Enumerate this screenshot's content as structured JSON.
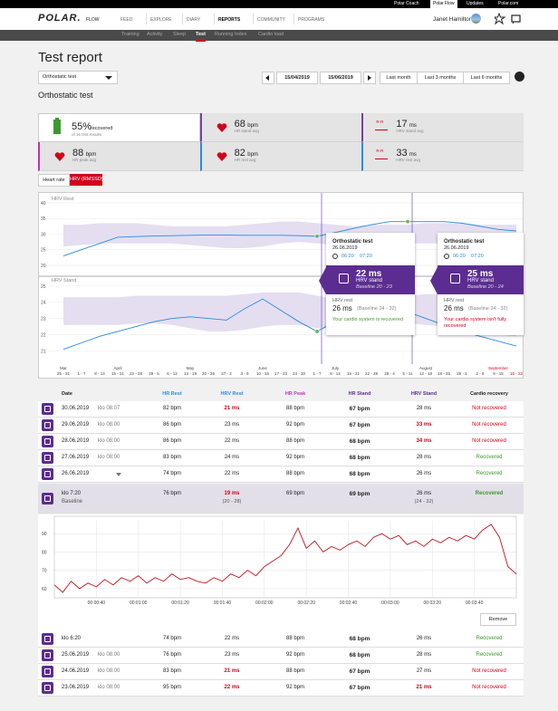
{
  "topbar": {
    "links": [
      "Polar Coach",
      "Polar Flow",
      "Updates",
      "Polar.com"
    ]
  },
  "nav": {
    "logo": "POLAR.",
    "product": "FLOW",
    "items": [
      "FEED",
      "EXPLORE",
      "DIARY",
      "REPORTS",
      "COMMUNITY",
      "PROGRAMS"
    ],
    "user": "Janet Hamilton"
  },
  "subnav": {
    "items": [
      "Training",
      "Activity",
      "Sleep",
      "Test",
      "Running Index",
      "Cardio load"
    ]
  },
  "header": {
    "title": "Test report",
    "select": "Orthostatic test",
    "date_from": "15/04/2019",
    "date_to": "15/06/2019",
    "ranges": [
      "Last month",
      "Last 3 months",
      "Last 6 months"
    ]
  },
  "section_title": "Orthostatic test",
  "summary": [
    {
      "value": "55%",
      "unit": "recovered",
      "label": "of 16 test results"
    },
    {
      "value": "68",
      "unit": "bpm",
      "label": "HR stand avg"
    },
    {
      "icon": "R-R",
      "value": "17",
      "unit": "ms",
      "label": "HRV stand avg"
    },
    {
      "value": "88",
      "unit": "bpm",
      "label": "HR peak avg"
    },
    {
      "value": "82",
      "unit": "bpm",
      "label": "HR rest avg"
    },
    {
      "icon": "R-R",
      "value": "33",
      "unit": "ms",
      "label": "HRV rest avg"
    }
  ],
  "tabs": [
    "Heart rate",
    "HRV (RMSSD)"
  ],
  "hrv_chart": {
    "weeks": [
      "25 - 31",
      "1 - 7",
      "8 - 14",
      "15 - 21",
      "22 - 28",
      "29 - 5",
      "6 - 12",
      "13 - 19",
      "20 - 26",
      "27 - 2",
      "3 - 9",
      "10 - 16",
      "17 - 23",
      "24 - 30",
      "1 - 7",
      "8 - 14",
      "15 - 21",
      "22 - 28",
      "29 - 4",
      "5 - 11",
      "12 - 18",
      "19 - 25",
      "26 - 1",
      "2 - 8",
      "9 - 15",
      "16 - 22"
    ],
    "months": [
      "Mar",
      null,
      null,
      "April",
      null,
      null,
      null,
      "May",
      null,
      null,
      null,
      "June",
      null,
      null,
      null,
      "July",
      null,
      null,
      null,
      null,
      "August",
      null,
      null,
      null,
      "September",
      null
    ],
    "red_month": 24,
    "red_week": 25,
    "selected": [
      14,
      19
    ],
    "panels": [
      {
        "title": "HRV Rest",
        "ylim": [
          16.5,
          42.6
        ],
        "yticks": [
          20,
          25,
          30,
          35,
          40
        ],
        "values": [
          23,
          25,
          27,
          29,
          29.2,
          29.4,
          29.5,
          29.6,
          29.7,
          29.7,
          29.6,
          29.6,
          29.6,
          29.5,
          29.3,
          30.5,
          31.8,
          33,
          34,
          34,
          34,
          34,
          33.5,
          32.5,
          31.5,
          31
        ],
        "band_low": [
          26,
          26.5,
          27,
          27,
          27,
          27,
          27,
          26.5,
          26,
          25.5,
          25.5,
          26,
          27,
          27.5,
          27,
          26.5,
          26,
          26.5,
          27,
          27,
          27,
          27,
          27,
          26.5,
          26,
          26
        ],
        "band_high": [
          33,
          33,
          33.5,
          33.5,
          33.5,
          33,
          32.5,
          32.5,
          32.5,
          32.5,
          33,
          33.5,
          34,
          34,
          33.5,
          33,
          32.5,
          33,
          33,
          33,
          33.5,
          33.5,
          33.5,
          33,
          33,
          33
        ]
      },
      {
        "title": "HRV Stand",
        "ylim": [
          20.3,
          25.6
        ],
        "yticks": [
          21,
          22,
          23,
          24,
          25
        ],
        "values": [
          21.1,
          21.5,
          21.9,
          22.2,
          22.5,
          22.8,
          23,
          23.1,
          23,
          22.9,
          23.6,
          24.2,
          23.5,
          22.8,
          22.2,
          22.8,
          23.1,
          23.2,
          23.3,
          23.4,
          23,
          22.6,
          22.2,
          21.9,
          21.6,
          21.3
        ],
        "band_low": [
          22.6,
          22.6,
          22.6,
          22.6,
          22.7,
          22.7,
          22.6,
          22.4,
          22.2,
          22.2,
          22.3,
          22.5,
          22.6,
          22.6,
          22.4,
          22.4,
          22.4,
          22.5,
          22.6,
          22.7,
          22.6,
          22.5,
          22.4,
          22.2,
          22,
          21.9
        ],
        "band_high": [
          24.3,
          24.3,
          24.3,
          24.3,
          24.4,
          24.4,
          24.4,
          24.4,
          24.4,
          24.4,
          24.5,
          24.6,
          24.6,
          24.6,
          24.4,
          24.2,
          24.1,
          24.2,
          24.3,
          24.4,
          24.5,
          24.5,
          24.4,
          24.3,
          24.2,
          24.2
        ]
      }
    ]
  },
  "tooltips": [
    {
      "title": "Orthostatic test",
      "date": "26.06.2019",
      "start": "06:20",
      "end": "07:20",
      "stand_value": "22 ms",
      "stand_label": "HRV stand",
      "stand_baseline": "Baseline 20 - 23",
      "rest_label": "HRV rest",
      "rest_value": "26 ms",
      "rest_baseline": "(Baseline 24 - 32)",
      "message": "Your cardio system is recovered",
      "recovered": true
    },
    {
      "title": "Orthostatic test",
      "date": "26.06.2019",
      "start": "06:20",
      "end": "07:20",
      "stand_value": "25 ms",
      "stand_label": "HRV stand",
      "stand_baseline": "Baseline 20 - 24",
      "rest_label": "HRV rest",
      "rest_value": "26 ms",
      "rest_baseline": "(Baseline 24 - 32)",
      "message": "Your cardio system isn't fully recovered",
      "recovered": false
    }
  ],
  "table": {
    "headers": [
      "Date",
      "HR Rest",
      "HRV Rest",
      "HR Peak",
      "HR Stand",
      "HRV Stand",
      "Cardio recovery"
    ],
    "rows": [
      {
        "date": "30.06.2019",
        "time": "klo 08:07",
        "cells": [
          "82 bpm",
          "21 ms",
          "88 bpm",
          "67 bpm",
          "28 ms",
          "Not recovered"
        ],
        "red": [
          1
        ],
        "recovered": false
      },
      {
        "date": "29.06.2019",
        "time": "klo 08:00",
        "cells": [
          "86 bpm",
          "23 ms",
          "92 bpm",
          "67 bpm",
          "33 ms",
          "Not recovered"
        ],
        "red": [
          4
        ],
        "recovered": false
      },
      {
        "date": "28.06.2019",
        "time": "klo 08:00",
        "cells": [
          "86 bpm",
          "22 ms",
          "88 bpm",
          "68 bpm",
          "34 ms",
          "Not recovered"
        ],
        "red": [
          4
        ],
        "recovered": false
      },
      {
        "date": "27.06.2019",
        "time": "klo 08:00",
        "cells": [
          "83 bpm",
          "24 ms",
          "92 bpm",
          "68 bpm",
          "28 ms",
          "Recovered"
        ],
        "red": [],
        "recovered": true
      },
      {
        "date": "26.06.2019",
        "time": null,
        "cells": [
          "74 bpm",
          "22 ms",
          "88 bpm",
          "68 bpm",
          "26 ms",
          "Recovered"
        ],
        "red": [],
        "recovered": true,
        "expanded": true
      }
    ],
    "baseline": {
      "date": "klo 7:20",
      "time": "Baseline",
      "cells": [
        "76 bpm",
        "19 ms",
        "69 bpm",
        "69 bpm",
        "26 ms",
        "Recovered"
      ],
      "notes": [
        null,
        "(20 - 28)",
        null,
        null,
        "(24 - 32)",
        null
      ],
      "red": [
        1
      ],
      "recovered": true
    },
    "after_rows": [
      {
        "date": "klo 6:20",
        "time": null,
        "cells": [
          "74 bpm",
          "22 ms",
          "88 bpm",
          "68 bpm",
          "26 ms",
          "Recovered"
        ],
        "red": [],
        "recovered": true
      },
      {
        "date": "25.06.2019",
        "time": "klo 08:00",
        "cells": [
          "76 bpm",
          "23 ms",
          "92 bpm",
          "68 bpm",
          "28 ms",
          "Recovered"
        ],
        "red": [],
        "recovered": true
      },
      {
        "date": "24.06.2019",
        "time": "klo 08:00",
        "cells": [
          "83 bpm",
          "21 ms",
          "88 bpm",
          "67 bpm",
          "27 ms",
          "Not recovered"
        ],
        "red": [
          1
        ],
        "recovered": false
      },
      {
        "date": "23.06.2019",
        "time": "klo 08:00",
        "cells": [
          "95 bpm",
          "22 ms",
          "92 bpm",
          "67 bpm",
          "21 ms",
          "Not recovered"
        ],
        "red": [
          1,
          4
        ],
        "recovered": false
      }
    ]
  },
  "detail_chart": {
    "xlim": [
      20,
      240
    ],
    "ylim": [
      55,
      97
    ],
    "yticks": [
      60,
      70,
      80,
      90
    ],
    "xticks": [
      {
        "value": 40,
        "label": "00:00:40"
      },
      {
        "value": 60,
        "label": "00:01:00"
      },
      {
        "value": 80,
        "label": "00:01:20"
      },
      {
        "value": 100,
        "label": "00:01:40"
      },
      {
        "value": 120,
        "label": "00:02:00"
      },
      {
        "value": 140,
        "label": "00:02:20"
      },
      {
        "value": 160,
        "label": "00:02:40"
      },
      {
        "value": 180,
        "label": "00:03:00"
      },
      {
        "value": 200,
        "label": "00:03:20"
      },
      {
        "value": 220,
        "label": "00:03:40"
      }
    ],
    "x": [
      20,
      24,
      28,
      32,
      36,
      40,
      44,
      48,
      52,
      56,
      60,
      64,
      68,
      72,
      76,
      80,
      84,
      88,
      92,
      96,
      100,
      104,
      108,
      112,
      116,
      120,
      124,
      128,
      132,
      136,
      140,
      144,
      148,
      152,
      156,
      160,
      164,
      168,
      172,
      176,
      180,
      184,
      188,
      192,
      196,
      200,
      204,
      208,
      212,
      216,
      220,
      224,
      228,
      232,
      236,
      240
    ],
    "values": [
      62,
      58,
      64,
      60,
      63,
      61,
      65,
      62,
      66,
      64,
      67,
      63,
      66,
      64,
      68,
      65,
      66,
      64,
      63,
      66,
      64,
      68,
      66,
      70,
      67,
      72,
      75,
      78,
      84,
      93,
      82,
      86,
      80,
      83,
      81,
      84,
      86,
      83,
      88,
      90,
      87,
      89,
      84,
      86,
      83,
      87,
      85,
      88,
      86,
      89,
      87,
      92,
      95,
      88,
      72,
      68
    ],
    "color": "#c4121f"
  },
  "remove": "Remove"
}
